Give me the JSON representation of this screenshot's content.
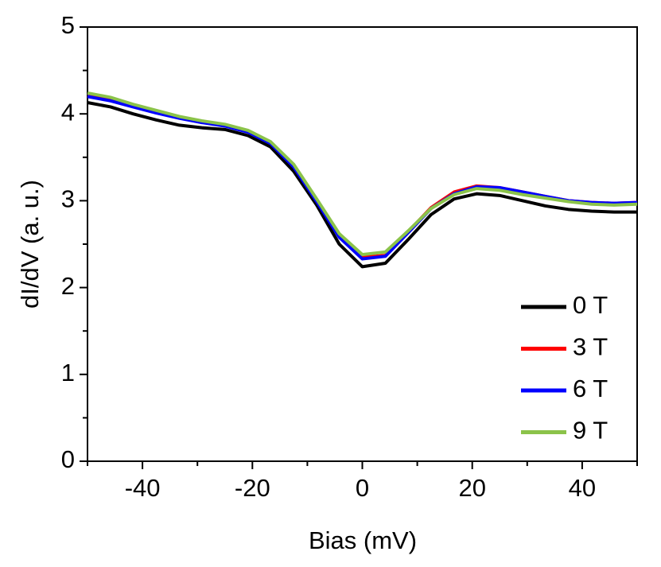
{
  "chart_data": {
    "type": "line",
    "xlabel": "Bias (mV)",
    "ylabel": "dI/dV (a. u.)",
    "x": [
      -50,
      -45.8,
      -41.7,
      -37.5,
      -33.3,
      -29.2,
      -25,
      -20.8,
      -16.7,
      -12.5,
      -8.3,
      -4.2,
      0,
      4.2,
      8.3,
      12.5,
      16.7,
      20.8,
      25,
      29.2,
      33.3,
      37.5,
      41.7,
      45.8,
      50
    ],
    "series": [
      {
        "name": "0 T",
        "color": "#000000",
        "values": [
          4.13,
          4.08,
          4.0,
          3.93,
          3.87,
          3.84,
          3.82,
          3.75,
          3.62,
          3.34,
          2.95,
          2.5,
          2.24,
          2.28,
          2.55,
          2.84,
          3.02,
          3.08,
          3.06,
          3.0,
          2.94,
          2.9,
          2.88,
          2.87,
          2.87
        ]
      },
      {
        "name": "3 T",
        "color": "#ff0000",
        "values": [
          4.21,
          4.16,
          4.09,
          4.02,
          3.96,
          3.91,
          3.87,
          3.8,
          3.67,
          3.4,
          3.0,
          2.59,
          2.35,
          2.37,
          2.64,
          2.92,
          3.1,
          3.17,
          3.15,
          3.1,
          3.05,
          3.0,
          2.98,
          2.97,
          2.98
        ]
      },
      {
        "name": "6 T",
        "color": "#0000ff",
        "values": [
          4.2,
          4.15,
          4.08,
          4.01,
          3.95,
          3.9,
          3.86,
          3.79,
          3.66,
          3.39,
          2.99,
          2.58,
          2.33,
          2.36,
          2.63,
          2.91,
          3.08,
          3.16,
          3.15,
          3.1,
          3.05,
          3.0,
          2.98,
          2.97,
          2.98
        ]
      },
      {
        "name": "9 T",
        "color": "#8bc34a",
        "values": [
          4.24,
          4.19,
          4.11,
          4.04,
          3.97,
          3.92,
          3.88,
          3.81,
          3.68,
          3.42,
          3.02,
          2.62,
          2.38,
          2.41,
          2.65,
          2.91,
          3.07,
          3.14,
          3.12,
          3.07,
          3.03,
          2.99,
          2.96,
          2.95,
          2.96
        ]
      }
    ],
    "xlim": [
      -50,
      50
    ],
    "xticks": [
      -40,
      -20,
      0,
      20,
      40
    ],
    "xminorticks": [
      -50,
      -30,
      -10,
      10,
      30,
      50
    ],
    "ylim": [
      0,
      5
    ],
    "yticks": [
      0,
      1,
      2,
      3,
      4,
      5
    ],
    "yminorticks": [
      0.5,
      1.5,
      2.5,
      3.5,
      4.5
    ],
    "legend": "lower right"
  }
}
